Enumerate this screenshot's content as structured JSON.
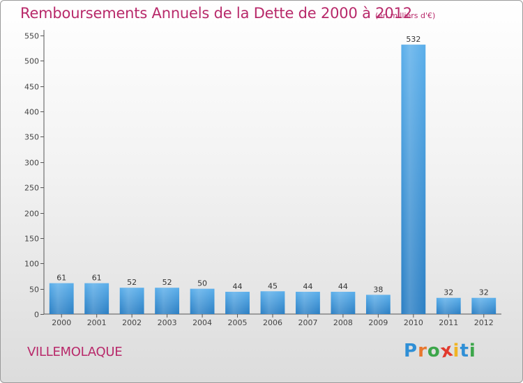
{
  "header": {
    "title": "Remboursements Annuels de la Dette de 2000 à 2012",
    "unit": "(en milliers d'€)"
  },
  "footer": {
    "commune": "VILLEMOLAQUE",
    "logo_text": "Proxiti",
    "logo_letters": [
      {
        "ch": "P",
        "color": "#2f8fd6"
      },
      {
        "ch": "r",
        "color": "#e8772e"
      },
      {
        "ch": "o",
        "color": "#3ca64a"
      },
      {
        "ch": "x",
        "color": "#e23a2e"
      },
      {
        "ch": "i",
        "color": "#f0b323"
      },
      {
        "ch": "t",
        "color": "#2f8fd6"
      },
      {
        "ch": "i",
        "color": "#3ca64a"
      }
    ]
  },
  "chart_data": {
    "type": "bar",
    "title": "Remboursements Annuels de la Dette de 2000 à 2012",
    "subtitle": "(en milliers d'€)",
    "categories": [
      "2000",
      "2001",
      "2002",
      "2003",
      "2004",
      "2005",
      "2006",
      "2007",
      "2008",
      "2009",
      "2010",
      "2011",
      "2012"
    ],
    "values": [
      61,
      61,
      52,
      52,
      50,
      44,
      45,
      44,
      44,
      38,
      532,
      32,
      32
    ],
    "ylim": [
      0,
      550
    ],
    "yticks": [
      0,
      50,
      100,
      150,
      200,
      250,
      300,
      350,
      400,
      450,
      500,
      550
    ],
    "grid": false,
    "legend": "none",
    "bar_color": "#3d98dd"
  }
}
